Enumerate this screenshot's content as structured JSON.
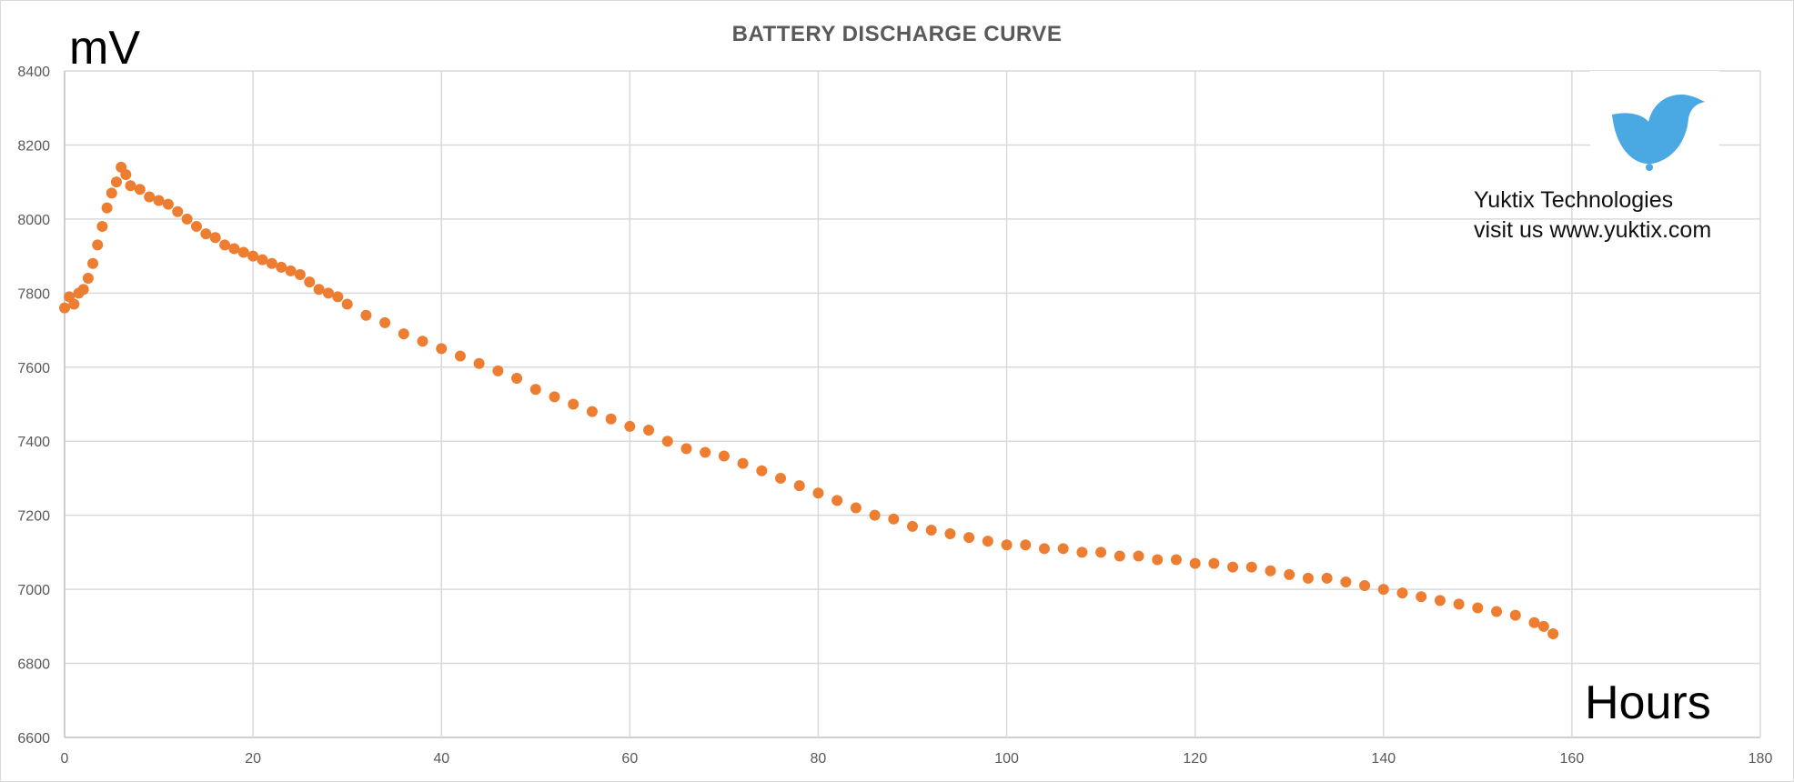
{
  "chart_data": {
    "type": "scatter",
    "title": "BATTERY DISCHARGE CURVE",
    "ylabel": "mV",
    "xlabel": "Hours",
    "xlim": [
      0,
      180
    ],
    "ylim": [
      6600,
      8400
    ],
    "x_ticks": [
      "0",
      "20",
      "40",
      "60",
      "80",
      "100",
      "120",
      "140",
      "160",
      "180"
    ],
    "y_ticks": [
      "6600",
      "6800",
      "7000",
      "7200",
      "7400",
      "7600",
      "7800",
      "8000",
      "8200",
      "8400"
    ],
    "grid": true,
    "color": "#ED7D31",
    "series": [
      {
        "x": [
          0,
          0.5,
          1,
          1.5,
          2,
          2.5,
          3,
          3.5,
          4,
          4.5,
          5,
          5.5,
          6,
          6.5,
          7,
          8,
          9,
          10,
          11,
          12,
          13,
          14,
          15,
          16,
          17,
          18,
          19,
          20,
          21,
          22,
          23,
          24,
          25,
          26,
          27,
          28,
          29,
          30,
          32,
          34,
          36,
          38,
          40,
          42,
          44,
          46,
          48,
          50,
          52,
          54,
          56,
          58,
          60,
          62,
          64,
          66,
          68,
          70,
          72,
          74,
          76,
          78,
          80,
          82,
          84,
          86,
          88,
          90,
          92,
          94,
          96,
          98,
          100,
          102,
          104,
          106,
          108,
          110,
          112,
          114,
          116,
          118,
          120,
          122,
          124,
          126,
          128,
          130,
          132,
          134,
          136,
          138,
          140,
          142,
          144,
          146,
          148,
          150,
          152,
          154,
          156,
          157,
          158
        ],
        "y": [
          7760,
          7790,
          7770,
          7800,
          7810,
          7840,
          7880,
          7930,
          7980,
          8030,
          8070,
          8100,
          8140,
          8120,
          8090,
          8080,
          8060,
          8050,
          8040,
          8020,
          8000,
          7980,
          7960,
          7950,
          7930,
          7920,
          7910,
          7900,
          7890,
          7880,
          7870,
          7860,
          7850,
          7830,
          7810,
          7800,
          7790,
          7770,
          7740,
          7720,
          7690,
          7670,
          7650,
          7630,
          7610,
          7590,
          7570,
          7540,
          7520,
          7500,
          7480,
          7460,
          7440,
          7430,
          7400,
          7380,
          7370,
          7360,
          7340,
          7320,
          7300,
          7280,
          7260,
          7240,
          7220,
          7200,
          7190,
          7170,
          7160,
          7150,
          7140,
          7130,
          7120,
          7120,
          7110,
          7110,
          7100,
          7100,
          7090,
          7090,
          7080,
          7080,
          7070,
          7070,
          7060,
          7060,
          7050,
          7040,
          7030,
          7030,
          7020,
          7010,
          7000,
          6990,
          6980,
          6970,
          6960,
          6950,
          6940,
          6930,
          6910,
          6900,
          6880
        ]
      }
    ]
  },
  "logo": {
    "icon": "bird-icon",
    "color": "#4AA8E2",
    "company": "Yuktix Technologies",
    "website": "visit us www.yuktix.com"
  }
}
